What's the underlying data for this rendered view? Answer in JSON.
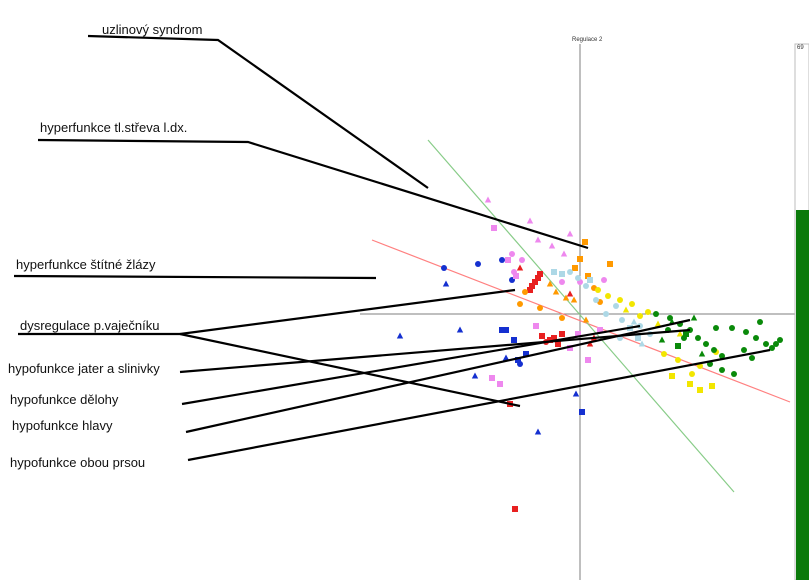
{
  "chart_data": {
    "type": "scatter",
    "axis_title": "Regulace 2",
    "grid": false,
    "side_bar_label": "69",
    "side_bar_color": "#0a7a0a",
    "trend_lines": [
      {
        "color": "#ff8080"
      },
      {
        "color": "#88cc88"
      }
    ],
    "annotations": [
      "uzlinový syndrom",
      "hyperfunkce tl.střeva l.dx.",
      "hyperfunkce štítné žlázy",
      "dysregulace p.vaječníku",
      "hypofunkce jater a slinivky",
      "hypofunkce dělohy",
      "hypofunkce hlavy",
      "hypofunkce obou prsou"
    ],
    "series": [
      {
        "color": "#e82020",
        "points": [
          {
            "x": -0.45,
            "y": 0.32,
            "m": "square"
          },
          {
            "x": -0.48,
            "y": 0.28,
            "m": "square"
          },
          {
            "x": -0.42,
            "y": 0.36,
            "m": "square"
          },
          {
            "x": -0.5,
            "y": 0.24,
            "m": "square"
          },
          {
            "x": -0.4,
            "y": 0.4,
            "m": "square"
          },
          {
            "x": -0.38,
            "y": -0.22,
            "m": "square"
          },
          {
            "x": -0.3,
            "y": -0.26,
            "m": "square"
          },
          {
            "x": -0.26,
            "y": -0.24,
            "m": "square"
          },
          {
            "x": -0.22,
            "y": -0.3,
            "m": "square"
          },
          {
            "x": -0.18,
            "y": -0.2,
            "m": "square"
          },
          {
            "x": -0.7,
            "y": -0.9,
            "m": "square"
          },
          {
            "x": -0.65,
            "y": -1.95,
            "m": "square"
          },
          {
            "x": -0.34,
            "y": -0.28,
            "m": "circle"
          },
          {
            "x": -0.1,
            "y": 0.2,
            "m": "triangle"
          },
          {
            "x": 0.1,
            "y": -0.3,
            "m": "triangle"
          },
          {
            "x": 0.14,
            "y": -0.24,
            "m": "triangle"
          },
          {
            "x": -0.6,
            "y": 0.46,
            "m": "triangle"
          }
        ]
      },
      {
        "color": "#ff9900",
        "points": [
          {
            "x": 0.05,
            "y": 0.72,
            "m": "square"
          },
          {
            "x": 0.3,
            "y": 0.5,
            "m": "square"
          },
          {
            "x": 0.0,
            "y": 0.55,
            "m": "square"
          },
          {
            "x": -0.05,
            "y": 0.46,
            "m": "square"
          },
          {
            "x": 0.08,
            "y": 0.38,
            "m": "square"
          },
          {
            "x": -0.3,
            "y": 0.3,
            "m": "triangle"
          },
          {
            "x": -0.24,
            "y": 0.22,
            "m": "triangle"
          },
          {
            "x": -0.14,
            "y": 0.16,
            "m": "triangle"
          },
          {
            "x": -0.06,
            "y": 0.14,
            "m": "triangle"
          },
          {
            "x": -0.55,
            "y": 0.22,
            "m": "circle"
          },
          {
            "x": -0.6,
            "y": 0.1,
            "m": "circle"
          },
          {
            "x": -0.4,
            "y": 0.06,
            "m": "circle"
          },
          {
            "x": 0.14,
            "y": 0.26,
            "m": "circle"
          },
          {
            "x": 0.2,
            "y": 0.12,
            "m": "circle"
          },
          {
            "x": -0.18,
            "y": -0.04,
            "m": "circle"
          },
          {
            "x": 0.06,
            "y": -0.06,
            "m": "triangle"
          }
        ]
      },
      {
        "color": "#1530d0",
        "points": [
          {
            "x": -1.36,
            "y": 0.46,
            "m": "circle"
          },
          {
            "x": -1.02,
            "y": 0.5,
            "m": "circle"
          },
          {
            "x": -0.78,
            "y": 0.54,
            "m": "circle"
          },
          {
            "x": -0.68,
            "y": 0.34,
            "m": "circle"
          },
          {
            "x": -1.34,
            "y": 0.3,
            "m": "triangle"
          },
          {
            "x": -0.78,
            "y": -0.16,
            "m": "square"
          },
          {
            "x": -0.74,
            "y": -0.16,
            "m": "square"
          },
          {
            "x": -0.66,
            "y": -0.26,
            "m": "square"
          },
          {
            "x": -0.62,
            "y": -0.46,
            "m": "square"
          },
          {
            "x": -0.54,
            "y": -0.4,
            "m": "square"
          },
          {
            "x": -0.74,
            "y": -0.44,
            "m": "triangle"
          },
          {
            "x": -1.2,
            "y": -0.16,
            "m": "triangle"
          },
          {
            "x": -1.8,
            "y": -0.22,
            "m": "triangle"
          },
          {
            "x": -0.04,
            "y": -0.8,
            "m": "triangle"
          },
          {
            "x": -0.42,
            "y": -1.18,
            "m": "triangle"
          },
          {
            "x": -1.05,
            "y": -0.62,
            "m": "triangle"
          },
          {
            "x": 0.02,
            "y": -0.98,
            "m": "square"
          },
          {
            "x": -0.6,
            "y": -0.5,
            "m": "circle"
          }
        ]
      },
      {
        "color": "#ee88ee",
        "points": [
          {
            "x": -0.92,
            "y": 1.14,
            "m": "triangle"
          },
          {
            "x": -0.5,
            "y": 0.93,
            "m": "triangle"
          },
          {
            "x": -0.42,
            "y": 0.74,
            "m": "triangle"
          },
          {
            "x": -0.28,
            "y": 0.68,
            "m": "triangle"
          },
          {
            "x": -0.1,
            "y": 0.8,
            "m": "triangle"
          },
          {
            "x": -0.16,
            "y": 0.6,
            "m": "triangle"
          },
          {
            "x": -0.58,
            "y": 0.54,
            "m": "circle"
          },
          {
            "x": -0.66,
            "y": 0.42,
            "m": "circle"
          },
          {
            "x": -0.86,
            "y": 0.86,
            "m": "square"
          },
          {
            "x": -0.72,
            "y": 0.54,
            "m": "square"
          },
          {
            "x": -0.64,
            "y": 0.38,
            "m": "square"
          },
          {
            "x": -0.44,
            "y": -0.12,
            "m": "square"
          },
          {
            "x": -0.1,
            "y": -0.34,
            "m": "square"
          },
          {
            "x": -0.02,
            "y": -0.2,
            "m": "square"
          },
          {
            "x": 0.2,
            "y": -0.16,
            "m": "square"
          },
          {
            "x": 0.08,
            "y": -0.46,
            "m": "square"
          },
          {
            "x": -0.8,
            "y": -0.7,
            "m": "square"
          },
          {
            "x": -0.88,
            "y": -0.64,
            "m": "square"
          },
          {
            "x": -0.68,
            "y": 0.6,
            "m": "circle"
          },
          {
            "x": -0.18,
            "y": 0.32,
            "m": "circle"
          },
          {
            "x": 0.0,
            "y": 0.32,
            "m": "circle"
          },
          {
            "x": 0.24,
            "y": 0.34,
            "m": "circle"
          }
        ]
      },
      {
        "color": "#add8e6",
        "points": [
          {
            "x": -0.1,
            "y": 0.42,
            "m": "circle"
          },
          {
            "x": -0.02,
            "y": 0.36,
            "m": "circle"
          },
          {
            "x": 0.06,
            "y": 0.28,
            "m": "circle"
          },
          {
            "x": 0.16,
            "y": 0.14,
            "m": "circle"
          },
          {
            "x": 0.26,
            "y": 0.0,
            "m": "circle"
          },
          {
            "x": 0.36,
            "y": 0.08,
            "m": "circle"
          },
          {
            "x": 0.42,
            "y": -0.06,
            "m": "circle"
          },
          {
            "x": 0.6,
            "y": -0.12,
            "m": "circle"
          },
          {
            "x": 0.7,
            "y": -0.2,
            "m": "circle"
          },
          {
            "x": -0.26,
            "y": 0.42,
            "m": "square"
          },
          {
            "x": -0.18,
            "y": 0.4,
            "m": "square"
          },
          {
            "x": 0.1,
            "y": 0.34,
            "m": "square"
          },
          {
            "x": 0.5,
            "y": -0.14,
            "m": "square"
          },
          {
            "x": 0.58,
            "y": -0.24,
            "m": "square"
          },
          {
            "x": 0.62,
            "y": -0.3,
            "m": "triangle"
          },
          {
            "x": 0.54,
            "y": -0.08,
            "m": "triangle"
          },
          {
            "x": 0.4,
            "y": -0.24,
            "m": "circle"
          }
        ]
      },
      {
        "color": "#f2e600",
        "points": [
          {
            "x": 0.18,
            "y": 0.24,
            "m": "circle"
          },
          {
            "x": 0.28,
            "y": 0.18,
            "m": "circle"
          },
          {
            "x": 0.4,
            "y": 0.14,
            "m": "circle"
          },
          {
            "x": 0.52,
            "y": 0.1,
            "m": "circle"
          },
          {
            "x": 0.6,
            "y": -0.02,
            "m": "circle"
          },
          {
            "x": 0.68,
            "y": 0.02,
            "m": "circle"
          },
          {
            "x": 0.84,
            "y": -0.4,
            "m": "circle"
          },
          {
            "x": 0.98,
            "y": -0.46,
            "m": "circle"
          },
          {
            "x": 1.12,
            "y": -0.6,
            "m": "circle"
          },
          {
            "x": 1.2,
            "y": -0.52,
            "m": "circle"
          },
          {
            "x": 1.36,
            "y": -0.38,
            "m": "circle"
          },
          {
            "x": 1.1,
            "y": -0.7,
            "m": "square"
          },
          {
            "x": 1.2,
            "y": -0.76,
            "m": "square"
          },
          {
            "x": 1.32,
            "y": -0.72,
            "m": "square"
          },
          {
            "x": 0.92,
            "y": -0.62,
            "m": "square"
          },
          {
            "x": 0.46,
            "y": 0.04,
            "m": "triangle"
          },
          {
            "x": 0.78,
            "y": -0.1,
            "m": "triangle"
          },
          {
            "x": 1.0,
            "y": -0.2,
            "m": "triangle"
          }
        ]
      },
      {
        "color": "#0a8a0a",
        "points": [
          {
            "x": 0.76,
            "y": 0.0,
            "m": "circle"
          },
          {
            "x": 0.9,
            "y": -0.04,
            "m": "circle"
          },
          {
            "x": 1.0,
            "y": -0.1,
            "m": "circle"
          },
          {
            "x": 1.1,
            "y": -0.16,
            "m": "circle"
          },
          {
            "x": 1.18,
            "y": -0.24,
            "m": "circle"
          },
          {
            "x": 1.26,
            "y": -0.3,
            "m": "circle"
          },
          {
            "x": 1.34,
            "y": -0.36,
            "m": "circle"
          },
          {
            "x": 1.42,
            "y": -0.42,
            "m": "circle"
          },
          {
            "x": 1.52,
            "y": -0.14,
            "m": "circle"
          },
          {
            "x": 1.66,
            "y": -0.18,
            "m": "circle"
          },
          {
            "x": 1.76,
            "y": -0.24,
            "m": "circle"
          },
          {
            "x": 1.86,
            "y": -0.3,
            "m": "circle"
          },
          {
            "x": 1.92,
            "y": -0.34,
            "m": "circle"
          },
          {
            "x": 1.96,
            "y": -0.3,
            "m": "circle"
          },
          {
            "x": 2.0,
            "y": -0.26,
            "m": "circle"
          },
          {
            "x": 1.64,
            "y": -0.36,
            "m": "circle"
          },
          {
            "x": 1.3,
            "y": -0.5,
            "m": "circle"
          },
          {
            "x": 1.42,
            "y": -0.56,
            "m": "circle"
          },
          {
            "x": 1.54,
            "y": -0.6,
            "m": "circle"
          },
          {
            "x": 1.04,
            "y": -0.24,
            "m": "circle"
          },
          {
            "x": 0.88,
            "y": -0.16,
            "m": "circle"
          },
          {
            "x": 0.98,
            "y": -0.32,
            "m": "square"
          },
          {
            "x": 1.06,
            "y": -0.2,
            "m": "square"
          },
          {
            "x": 0.82,
            "y": -0.26,
            "m": "triangle"
          },
          {
            "x": 0.92,
            "y": -0.08,
            "m": "triangle"
          },
          {
            "x": 1.14,
            "y": -0.04,
            "m": "triangle"
          },
          {
            "x": 1.22,
            "y": -0.4,
            "m": "triangle"
          },
          {
            "x": 1.36,
            "y": -0.14,
            "m": "circle"
          },
          {
            "x": 1.8,
            "y": -0.08,
            "m": "circle"
          },
          {
            "x": 1.72,
            "y": -0.44,
            "m": "circle"
          }
        ]
      }
    ]
  }
}
